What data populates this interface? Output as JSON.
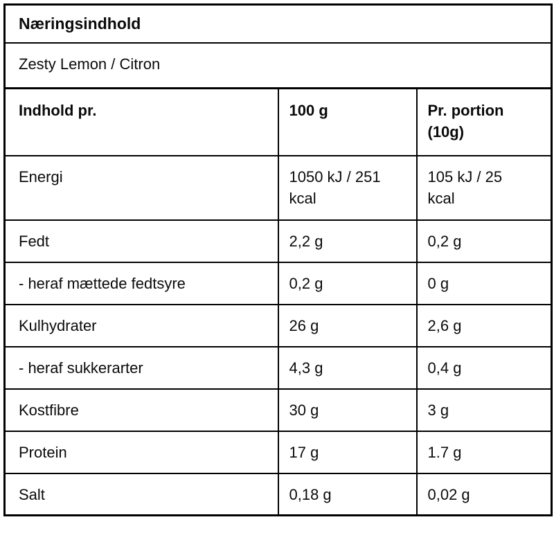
{
  "colors": {
    "background": "#ffffff",
    "text": "#0a0a0a",
    "border": "#000000"
  },
  "table": {
    "title": "Næringsindhold",
    "flavor": "Zesty Lemon / Citron",
    "columns": [
      "Indhold pr.",
      "100 g",
      "Pr. portion (10g)"
    ],
    "rows": [
      {
        "label": "Energi",
        "per_100g": "1050 kJ / 251 kcal",
        "per_portion": "105 kJ / 25 kcal"
      },
      {
        "label": "Fedt",
        "per_100g": "2,2 g",
        "per_portion": "0,2 g"
      },
      {
        "label": "- heraf mættede fedtsyre",
        "per_100g": "0,2 g",
        "per_portion": "0 g"
      },
      {
        "label": "Kulhydrater",
        "per_100g": "26 g",
        "per_portion": "2,6 g"
      },
      {
        "label": "- heraf sukkerarter",
        "per_100g": "4,3 g",
        "per_portion": "0,4 g"
      },
      {
        "label": "Kostfibre",
        "per_100g": "30 g",
        "per_portion": "3 g"
      },
      {
        "label": "Protein",
        "per_100g": "17 g",
        "per_portion": "1.7 g"
      },
      {
        "label": "Salt",
        "per_100g": "0,18 g",
        "per_portion": "0,02 g"
      }
    ]
  }
}
